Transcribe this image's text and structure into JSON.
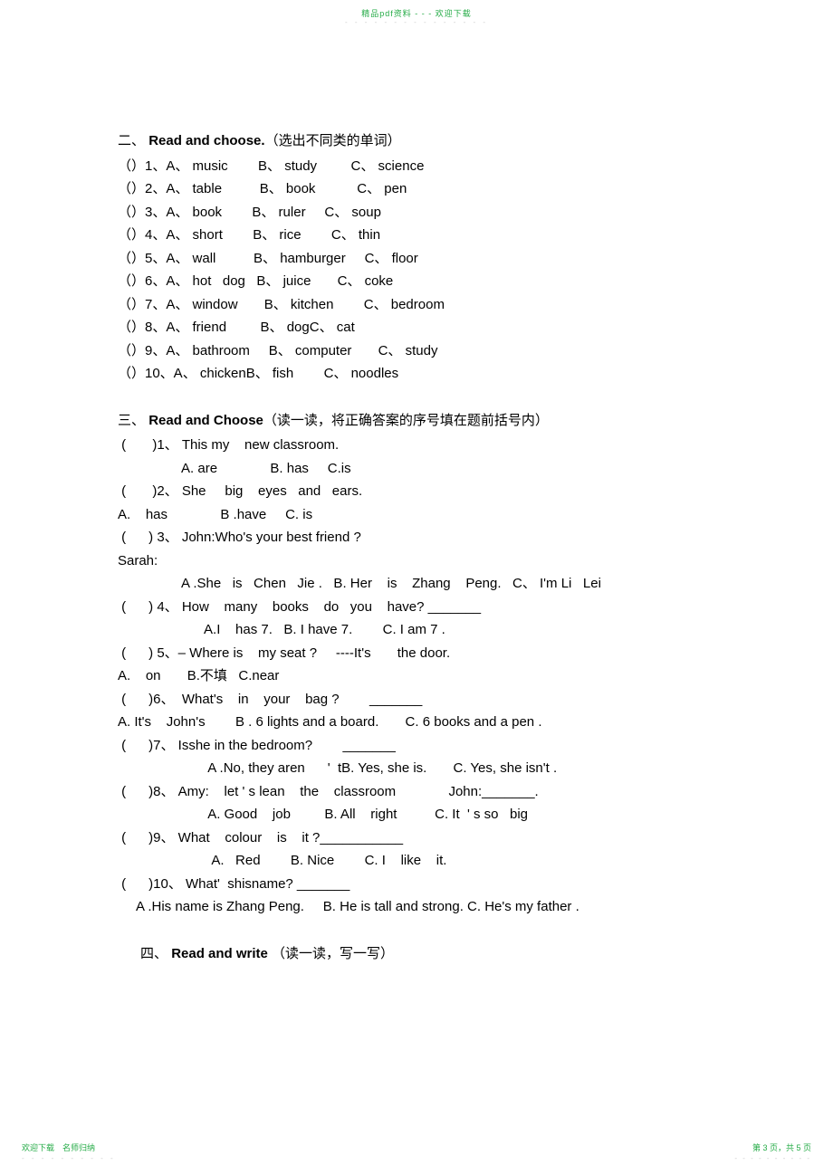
{
  "header": {
    "text": "精品pdf资料 - - - 欢迎下载",
    "dots": "- - - - - - - - - - - - - - -"
  },
  "footer": {
    "left": "欢迎下载　名师归纳",
    "leftDots": "- - - - - - - - - -",
    "right": "第 3 页，共 5 页",
    "rightDots": "- - - - - - - - - -"
  },
  "section2": {
    "num": "二、",
    "title": "Read and choose.",
    "subtitle": "（选出不同类的单词）",
    "lines": [
      "（）1、A、 music        B、 study         C、 science",
      "（）2、A、 table          B、 book           C、 pen",
      "（）3、A、 book        B、 ruler     C、 soup",
      "（）4、A、 short        B、 rice        C、 thin",
      "（）5、A、 wall          B、 hamburger     C、 floor",
      "（）6、A、 hot   dog   B、 juice       C、 coke",
      "（）7、A、 window       B、 kitchen        C、 bedroom",
      "（）8、A、 friend         B、 dogC、 cat",
      "（）9、A、 bathroom     B、 computer       C、 study",
      "（）10、A、 chickenB、 fish        C、 noodles"
    ]
  },
  "section3": {
    "num": "三、",
    "title": "Read and Choose",
    "subtitle": "（读一读，将正确答案的序号填在题前括号内）",
    "lines": [
      " (       )1、 This my    new classroom.",
      "                 A. are              B. has     C.is",
      " (       )2、 She     big    eyes   and   ears.",
      "A.    has              B .have     C. is",
      " (      ) 3、 John:Who's your best friend ?",
      "Sarah:",
      "                 A .She   is   Chen   Jie .   B. Her    is    Zhang    Peng.   C、 I'm Li   Lei",
      " (      ) 4、 How    many    books    do   you    have? _______",
      "                       A.I    has 7.   B. I have 7.        C. I am 7 .",
      " (      ) 5、– Where is    my seat ?     ----It's       the door.",
      "A.    on       B.不填   C.near",
      " (      )6、  What's    in    your    bag ?        _______",
      "A. It's    John's        B . 6 lights and a board.       C. 6 books and a pen .",
      " (      )7、 Isshe in the bedroom?        _______",
      "                        A .No, they aren      '  tB. Yes, she is.       C. Yes, she isn't .",
      " (      )8、 Amy:    let ' s lean    the    classroom              John:_______.",
      "                        A. Good    job         B. All    right          C. It  ' s so   big",
      " (      )9、 What    colour    is    it ?___________",
      "                         A.   Red        B. Nice        C. I    like    it.",
      " (      )10、 What'  shisname? _______",
      "     A .His name is Zhang Peng.     B. He is tall and strong. C. He's my father ."
    ]
  },
  "section4": {
    "num": "四、",
    "title": "Read and write",
    "subtitle": "  （读一读，写一写）"
  }
}
